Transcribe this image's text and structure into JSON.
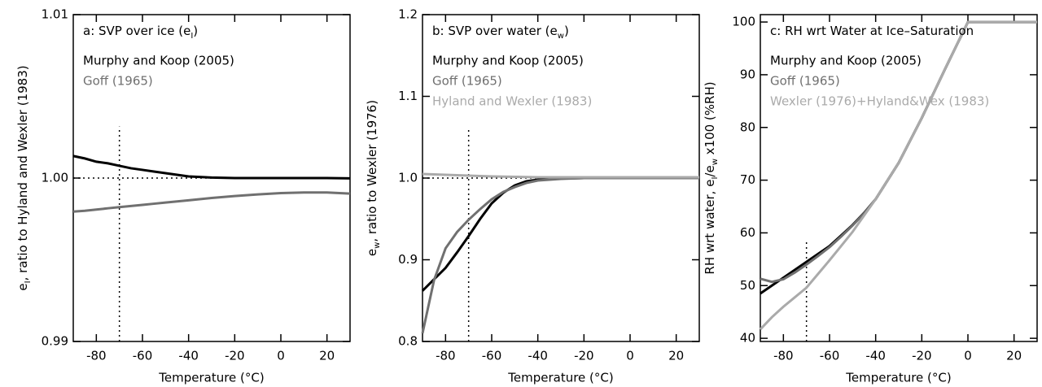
{
  "chart_data": [
    {
      "type": "line",
      "title": [
        "a: SVP over ice (e",
        "I",
        ")"
      ],
      "xlabel": "Temperature (°C)",
      "ylabel": [
        "e",
        "I",
        ", ratio to Hyland and Wexler (1983)"
      ],
      "x": [
        -90,
        -85,
        -80,
        -75,
        -70,
        -65,
        -60,
        -55,
        -50,
        -45,
        -40,
        -30,
        -20,
        -10,
        0,
        10,
        20,
        30
      ],
      "series": [
        {
          "name": "Murphy and Koop (2005)",
          "color": "#000000",
          "values": [
            1.00135,
            1.0012,
            1.001,
            1.0009,
            1.00075,
            1.0006,
            1.0005,
            1.0004,
            1.0003,
            1.0002,
            1.0001,
            1.00003,
            1.0,
            1.0,
            1.0,
            1.0,
            1.0,
            0.99998
          ]
        },
        {
          "name": "Goff (1965)",
          "color": "#707070",
          "values": [
            0.99795,
            0.998,
            0.99807,
            0.99815,
            0.99822,
            0.99829,
            0.99836,
            0.99843,
            0.9985,
            0.99857,
            0.99864,
            0.99878,
            0.9989,
            0.999,
            0.99908,
            0.99912,
            0.99912,
            0.99905
          ]
        }
      ],
      "reference_lines": [
        {
          "x": [
            -70,
            -70
          ],
          "y": [
            0.99,
            1.00315
          ]
        },
        {
          "x": [
            -90,
            30
          ],
          "y": [
            1.0,
            1.0
          ]
        }
      ],
      "xlim": [
        -90,
        30
      ],
      "ylim": [
        0.99,
        1.01
      ],
      "xticks": [
        -80,
        -60,
        -40,
        -20,
        0,
        20
      ],
      "yticks": [
        0.99,
        {
          "value": 1.0,
          "label": "1.00"
        },
        1.01
      ]
    },
    {
      "type": "line",
      "title": [
        "b: SVP over water (e",
        "w",
        ")"
      ],
      "xlabel": "Temperature (°C)",
      "ylabel": [
        "e",
        "w",
        ", ratio to Wexler (1976)"
      ],
      "x": [
        -90,
        -85,
        -80,
        -75,
        -70,
        -65,
        -60,
        -55,
        -50,
        -45,
        -40,
        -30,
        -20,
        -10,
        0,
        10,
        20,
        30
      ],
      "series": [
        {
          "name": "Murphy and Koop (2005)",
          "color": "#000000",
          "values": [
            0.862,
            0.876,
            0.89,
            0.909,
            0.929,
            0.95,
            0.969,
            0.982,
            0.991,
            0.996,
            0.998,
            0.9995,
            1.0,
            1.0,
            1.0,
            1.0,
            1.0,
            1.0
          ]
        },
        {
          "name": "Goff (1965)",
          "color": "#707070",
          "values": [
            0.81,
            0.875,
            0.914,
            0.934,
            0.949,
            0.962,
            0.974,
            0.983,
            0.989,
            0.994,
            0.997,
            0.999,
            1.0,
            1.0,
            1.0,
            1.0,
            1.0,
            1.0
          ]
        },
        {
          "name": "Hyland and Wexler (1983)",
          "color": "#aaaaaa",
          "values": [
            1.005,
            1.0045,
            1.004,
            1.0035,
            1.003,
            1.0025,
            1.002,
            1.0018,
            1.0015,
            1.0013,
            1.001,
            1.001,
            1.001,
            1.001,
            1.001,
            1.001,
            1.001,
            1.001
          ]
        }
      ],
      "reference_lines": [
        {
          "x": [
            -70,
            -70
          ],
          "y": [
            0.8,
            1.062
          ]
        },
        {
          "x": [
            -90,
            30
          ],
          "y": [
            1.0,
            1.0
          ]
        }
      ],
      "xlim": [
        -90,
        30
      ],
      "ylim": [
        0.8,
        1.2
      ],
      "xticks": [
        -80,
        -60,
        -40,
        -20,
        0,
        20
      ],
      "yticks": [
        0.8,
        0.9,
        {
          "value": 1.0,
          "label": "1.0"
        },
        1.1,
        1.2
      ]
    },
    {
      "type": "line",
      "title": [
        "c: RH wrt Water at Ice–Saturation"
      ],
      "xlabel": "Temperature (°C)",
      "ylabel": [
        "RH wrt water, e",
        "I",
        "/e",
        "w",
        " x100 (%RH)"
      ],
      "x": [
        -90,
        -85,
        -80,
        -75,
        -70,
        -65,
        -60,
        -55,
        -50,
        -45,
        -40,
        -30,
        -20,
        -10,
        0,
        10,
        20,
        30
      ],
      "series": [
        {
          "name": "Murphy and Koop (2005)",
          "color": "#000000",
          "values": [
            48.5,
            50,
            51.5,
            53,
            54.5,
            56,
            57.5,
            59.5,
            61.5,
            63.8,
            66.4,
            73.3,
            81.8,
            91,
            100,
            100,
            100,
            100
          ]
        },
        {
          "name": "Goff (1965)",
          "color": "#707070",
          "values": [
            51.3,
            50.7,
            51.2,
            52.5,
            54,
            55.6,
            57.3,
            59.3,
            61.4,
            63.7,
            66.4,
            73.3,
            81.8,
            91,
            100,
            100,
            100,
            100
          ]
        },
        {
          "name": "Wexler (1976)+Hyland&Wex (1983)",
          "color": "#aaaaaa",
          "values": [
            41.7,
            44,
            46,
            47.8,
            49.6,
            52.2,
            54.8,
            57.5,
            60.2,
            63.3,
            66.4,
            73.3,
            81.8,
            91,
            100,
            100,
            100,
            100
          ]
        }
      ],
      "reference_lines": [
        {
          "x": [
            -70,
            -70
          ],
          "y": [
            39.4,
            58.5
          ]
        }
      ],
      "xlim": [
        -90,
        30
      ],
      "ylim": [
        39.4,
        101.4
      ],
      "xticks": [
        -80,
        -60,
        -40,
        -20,
        0,
        20
      ],
      "yticks": [
        40,
        50,
        60,
        70,
        80,
        90,
        100
      ]
    }
  ]
}
